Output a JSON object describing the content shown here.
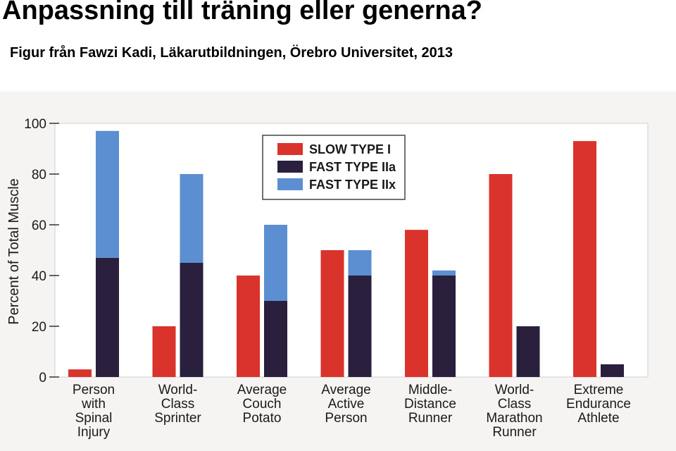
{
  "slide": {
    "title": "Anpassning till träning eller generna?",
    "subtitle": "Figur från Fawzi Kadi, Läkarutbildningen, Örebro Universitet, 2013"
  },
  "chart_data": {
    "type": "bar",
    "ylabel": "Percent of Total Muscle",
    "ylim": [
      0,
      100
    ],
    "yticks": [
      0,
      20,
      40,
      60,
      80,
      100
    ],
    "legend_position": "top-center",
    "categories": [
      [
        "Person",
        "with",
        "Spinal",
        "Injury"
      ],
      [
        "World-",
        "Class",
        "Sprinter"
      ],
      [
        "Average",
        "Couch",
        "Potato"
      ],
      [
        "Average",
        "Active",
        "Person"
      ],
      [
        "Middle-",
        "Distance",
        "Runner"
      ],
      [
        "World-",
        "Class",
        "Marathon",
        "Runner"
      ],
      [
        "Extreme",
        "Endurance",
        "Athlete"
      ]
    ],
    "series": [
      {
        "name": "SLOW TYPE I",
        "color": "#d9332b",
        "values": [
          3,
          20,
          40,
          50,
          58,
          80,
          93
        ]
      },
      {
        "name": "FAST TYPE IIa",
        "color": "#2a1f3d",
        "values": [
          47,
          45,
          30,
          40,
          40,
          20,
          5
        ]
      },
      {
        "name": "FAST TYPE IIx",
        "color": "#5b8fd1",
        "values": [
          50,
          35,
          30,
          10,
          2,
          0,
          0
        ]
      }
    ],
    "stacked_series_on_second_bar": [
      "FAST TYPE IIa",
      "FAST TYPE IIx"
    ]
  }
}
